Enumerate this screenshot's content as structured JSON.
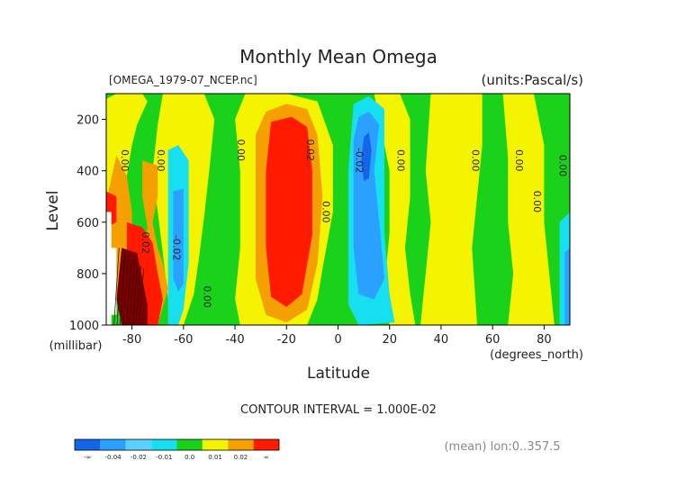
{
  "chart_data": {
    "type": "contour",
    "title": "Monthly Mean Omega",
    "file_label": "[OMEGA_1979-07_NCEP.nc]",
    "units_label": "(units:Pascal/s)",
    "xlabel": "Latitude",
    "x_units": "(degrees_north)",
    "ylabel": "Level",
    "y_units": "(millibar)",
    "x_ticks": [
      "-80",
      "-60",
      "-40",
      "-20",
      "0",
      "20",
      "40",
      "60",
      "80"
    ],
    "y_ticks": [
      "200",
      "400",
      "600",
      "800",
      "1000"
    ],
    "xlim": [
      -90,
      90
    ],
    "ylim": [
      1000,
      100
    ],
    "contour_interval_text": "CONTOUR INTERVAL = 1.000E-02",
    "footer_text": "(mean) lon:0..357.5",
    "colorbar": {
      "colors": [
        "#1565e8",
        "#2aa0ff",
        "#5ad0ff",
        "#16e0f0",
        "#1ad21a",
        "#f4f400",
        "#f4a000",
        "#ff1a00"
      ],
      "labels": [
        "-∞",
        "-0.04",
        "-0.02",
        "-0.01",
        "0.0",
        "0.01",
        "0.02",
        "∞"
      ]
    },
    "contour_labels": [
      {
        "text": "0.00",
        "lat": -84,
        "lev": 360
      },
      {
        "text": "0.00",
        "lat": -70,
        "lev": 360
      },
      {
        "text": "-0.02",
        "lat": -64,
        "lev": 700
      },
      {
        "text": "0.02",
        "lat": -76,
        "lev": 680
      },
      {
        "text": "0.00",
        "lat": -52,
        "lev": 890
      },
      {
        "text": "0.00",
        "lat": -39,
        "lev": 320
      },
      {
        "text": "0.02",
        "lat": -12,
        "lev": 320
      },
      {
        "text": "0.00",
        "lat": -6,
        "lev": 560
      },
      {
        "text": "-0.02",
        "lat": 7,
        "lev": 360
      },
      {
        "text": "0.00",
        "lat": 23,
        "lev": 360
      },
      {
        "text": "0.00",
        "lat": 52,
        "lev": 360
      },
      {
        "text": "0.00",
        "lat": 69,
        "lev": 360
      },
      {
        "text": "0.00",
        "lat": 76,
        "lev": 520
      },
      {
        "text": "0.00",
        "lat": 86,
        "lev": 380
      }
    ],
    "color_regions": [
      {
        "c": "#1ad21a",
        "pts": [
          [
            -90,
            100
          ],
          [
            90,
            100
          ],
          [
            90,
            1000
          ],
          [
            -90,
            1000
          ]
        ]
      },
      {
        "c": "#f4f400",
        "pts": [
          [
            -86,
            100
          ],
          [
            -76,
            100
          ],
          [
            -74,
            130
          ],
          [
            -78,
            220
          ],
          [
            -80,
            300
          ],
          [
            -82,
            420
          ],
          [
            -86,
            520
          ],
          [
            -90,
            560
          ],
          [
            -90,
            120
          ]
        ]
      },
      {
        "c": "#f4f400",
        "pts": [
          [
            -68,
            100
          ],
          [
            -52,
            100
          ],
          [
            -48,
            200
          ],
          [
            -50,
            400
          ],
          [
            -52,
            580
          ],
          [
            -54,
            740
          ],
          [
            -56,
            880
          ],
          [
            -60,
            1000
          ],
          [
            -64,
            1000
          ],
          [
            -66,
            900
          ],
          [
            -68,
            720
          ],
          [
            -70,
            560
          ],
          [
            -72,
            400
          ],
          [
            -70,
            220
          ]
        ]
      },
      {
        "c": "#f4f400",
        "pts": [
          [
            -36,
            100
          ],
          [
            -20,
            100
          ],
          [
            -8,
            130
          ],
          [
            -2,
            300
          ],
          [
            -2,
            560
          ],
          [
            -6,
            780
          ],
          [
            -8,
            900
          ],
          [
            -12,
            1000
          ],
          [
            -38,
            1000
          ],
          [
            -40,
            900
          ],
          [
            -38,
            700
          ],
          [
            -38,
            400
          ],
          [
            -40,
            200
          ]
        ]
      },
      {
        "c": "#f4f400",
        "pts": [
          [
            14,
            100
          ],
          [
            24,
            100
          ],
          [
            28,
            200
          ],
          [
            28,
            500
          ],
          [
            26,
            700
          ],
          [
            28,
            880
          ],
          [
            30,
            1000
          ],
          [
            20,
            1000
          ],
          [
            18,
            850
          ],
          [
            20,
            640
          ],
          [
            20,
            400
          ],
          [
            16,
            200
          ]
        ]
      },
      {
        "c": "#f4f400",
        "pts": [
          [
            36,
            100
          ],
          [
            56,
            100
          ],
          [
            56,
            300
          ],
          [
            54,
            500
          ],
          [
            52,
            700
          ],
          [
            54,
            1000
          ],
          [
            32,
            1000
          ],
          [
            34,
            800
          ],
          [
            36,
            600
          ],
          [
            34,
            400
          ]
        ]
      },
      {
        "c": "#f4f400",
        "pts": [
          [
            64,
            100
          ],
          [
            76,
            100
          ],
          [
            80,
            300
          ],
          [
            80,
            600
          ],
          [
            82,
            800
          ],
          [
            84,
            1000
          ],
          [
            66,
            1000
          ],
          [
            68,
            800
          ],
          [
            66,
            600
          ],
          [
            66,
            350
          ]
        ]
      },
      {
        "c": "#f4a000",
        "pts": [
          [
            -86,
            340
          ],
          [
            -82,
            420
          ],
          [
            -80,
            560
          ],
          [
            -80,
            720
          ],
          [
            -84,
            860
          ],
          [
            -88,
            900
          ],
          [
            -90,
            860
          ],
          [
            -90,
            520
          ]
        ]
      },
      {
        "c": "#f4a000",
        "pts": [
          [
            -76,
            360
          ],
          [
            -70,
            380
          ],
          [
            -70,
            500
          ],
          [
            -72,
            600
          ],
          [
            -70,
            700
          ],
          [
            -68,
            760
          ],
          [
            -66,
            860
          ],
          [
            -70,
            1000
          ],
          [
            -76,
            1000
          ],
          [
            -78,
            900
          ],
          [
            -76,
            760
          ],
          [
            -74,
            620
          ],
          [
            -76,
            500
          ]
        ]
      },
      {
        "c": "#f4a000",
        "pts": [
          [
            -28,
            170
          ],
          [
            -20,
            140
          ],
          [
            -12,
            160
          ],
          [
            -8,
            260
          ],
          [
            -6,
            500
          ],
          [
            -8,
            760
          ],
          [
            -12,
            940
          ],
          [
            -20,
            990
          ],
          [
            -28,
            960
          ],
          [
            -32,
            820
          ],
          [
            -32,
            500
          ],
          [
            -32,
            260
          ]
        ]
      },
      {
        "c": "#ff1a00",
        "pts": [
          [
            -26,
            210
          ],
          [
            -18,
            190
          ],
          [
            -12,
            230
          ],
          [
            -10,
            400
          ],
          [
            -10,
            650
          ],
          [
            -14,
            880
          ],
          [
            -20,
            930
          ],
          [
            -26,
            890
          ],
          [
            -28,
            700
          ],
          [
            -28,
            400
          ]
        ]
      },
      {
        "c": "#ff1a00",
        "pts": [
          [
            -90,
            480
          ],
          [
            -86,
            500
          ],
          [
            -86,
            600
          ],
          [
            -90,
            620
          ]
        ]
      },
      {
        "c": "#ff1a00",
        "pts": [
          [
            -82,
            600
          ],
          [
            -76,
            620
          ],
          [
            -72,
            680
          ],
          [
            -70,
            800
          ],
          [
            -68,
            900
          ],
          [
            -70,
            1000
          ],
          [
            -84,
            1000
          ],
          [
            -84,
            880
          ],
          [
            -82,
            760
          ]
        ]
      },
      {
        "c": "#16e0f0",
        "pts": [
          [
            -66,
            320
          ],
          [
            -62,
            300
          ],
          [
            -58,
            360
          ],
          [
            -58,
            560
          ],
          [
            -58,
            760
          ],
          [
            -60,
            940
          ],
          [
            -62,
            1000
          ],
          [
            -66,
            1000
          ],
          [
            -66,
            820
          ],
          [
            -66,
            560
          ]
        ]
      },
      {
        "c": "#2aa0ff",
        "pts": [
          [
            -64,
            480
          ],
          [
            -60,
            470
          ],
          [
            -60,
            640
          ],
          [
            -60,
            840
          ],
          [
            -62,
            870
          ],
          [
            -64,
            820
          ],
          [
            -64,
            640
          ]
        ]
      },
      {
        "c": "#16e0f0",
        "pts": [
          [
            6,
            140
          ],
          [
            12,
            110
          ],
          [
            18,
            160
          ],
          [
            18,
            400
          ],
          [
            18,
            640
          ],
          [
            20,
            880
          ],
          [
            22,
            990
          ],
          [
            8,
            1000
          ],
          [
            4,
            920
          ],
          [
            4,
            640
          ],
          [
            4,
            400
          ]
        ]
      },
      {
        "c": "#2aa0ff",
        "pts": [
          [
            8,
            190
          ],
          [
            12,
            170
          ],
          [
            16,
            220
          ],
          [
            14,
            400
          ],
          [
            16,
            600
          ],
          [
            18,
            820
          ],
          [
            14,
            900
          ],
          [
            8,
            880
          ],
          [
            6,
            700
          ],
          [
            6,
            480
          ],
          [
            6,
            280
          ]
        ]
      },
      {
        "c": "#1565e8",
        "pts": [
          [
            10,
            270
          ],
          [
            12,
            250
          ],
          [
            13,
            320
          ],
          [
            12,
            430
          ],
          [
            10,
            440
          ],
          [
            9,
            360
          ]
        ]
      },
      {
        "c": "#16e0f0",
        "pts": [
          [
            86,
            600
          ],
          [
            90,
            560
          ],
          [
            90,
            1000
          ],
          [
            86,
            1000
          ]
        ]
      },
      {
        "c": "#2aa0ff",
        "pts": [
          [
            88,
            720
          ],
          [
            90,
            700
          ],
          [
            90,
            1000
          ],
          [
            88,
            1000
          ]
        ]
      },
      {
        "c": "#7a0000",
        "pts": [
          [
            -84,
            700
          ],
          [
            -78,
            720
          ],
          [
            -76,
            820
          ],
          [
            -74,
            920
          ],
          [
            -74,
            1000
          ],
          [
            -84,
            1000
          ],
          [
            -86,
            900
          ]
        ]
      },
      {
        "c": "#ffffff",
        "pts": [
          [
            -90,
            560
          ],
          [
            -88,
            560
          ],
          [
            -88,
            700
          ],
          [
            -86,
            700
          ],
          [
            -86,
            960
          ],
          [
            -88,
            960
          ],
          [
            -88,
            1000
          ],
          [
            -90,
            1000
          ]
        ]
      }
    ]
  }
}
